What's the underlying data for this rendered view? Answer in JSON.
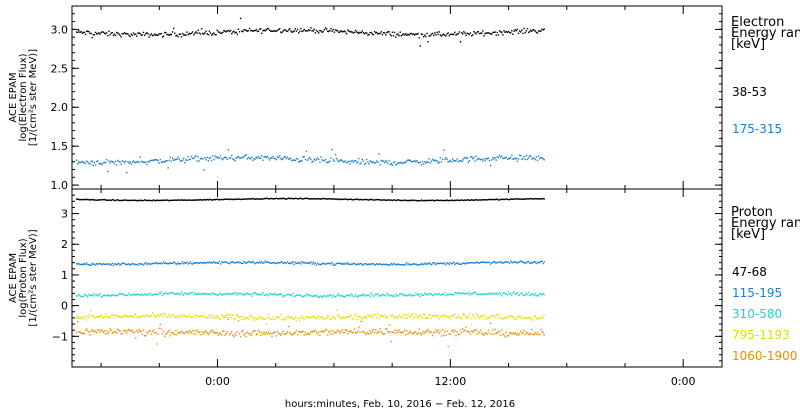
{
  "chart_data": [
    {
      "type": "scatter",
      "name": "electron",
      "ylabel_lines": [
        "ACE EPAM",
        "log(Electron Flux)",
        "[1/(cm²s ster MeV)]"
      ],
      "legend_title_lines": [
        "Electron",
        "Energy range",
        "[keV]"
      ],
      "ylim": [
        0.95,
        3.3
      ],
      "yticks": [
        1.0,
        1.5,
        2.0,
        2.5,
        3.0
      ],
      "ytick_labels": [
        "1.0",
        "1.5",
        "2.0",
        "2.5",
        "3.0"
      ],
      "series": [
        {
          "name": "38-53",
          "color": "#000000",
          "mean": 2.97,
          "noise": 0.045,
          "spikes": 0.03
        },
        {
          "name": "175-315",
          "color": "#1a7fd4",
          "mean": 1.33,
          "noise": 0.055,
          "spikes": 0.05
        }
      ]
    },
    {
      "type": "scatter",
      "name": "proton",
      "ylabel_lines": [
        "ACE EPAM",
        "log(Proton Flux)",
        "[1/(cm²s ster MeV)]"
      ],
      "legend_title_lines": [
        "Proton",
        "Energy range",
        "[keV]"
      ],
      "ylim": [
        -2.0,
        3.8
      ],
      "yticks": [
        -1,
        0,
        1,
        2,
        3
      ],
      "ytick_labels": [
        "−1",
        "0",
        "1",
        "2",
        "3"
      ],
      "series": [
        {
          "name": "47-68",
          "color": "#000000",
          "mean": 3.48,
          "noise": 0.02,
          "spikes": 0.0
        },
        {
          "name": "115-195",
          "color": "#1a7fd4",
          "mean": 1.4,
          "noise": 0.06,
          "spikes": 0.0
        },
        {
          "name": "310-580",
          "color": "#22d3cf",
          "mean": 0.38,
          "noise": 0.08,
          "spikes": 0.0
        },
        {
          "name": "795-1193",
          "color": "#e0e000",
          "mean": -0.35,
          "noise": 0.12,
          "spikes": 0.02
        },
        {
          "name": "1060-1900",
          "color": "#f08c00",
          "mean": -0.85,
          "noise": 0.16,
          "spikes": 0.04
        }
      ]
    }
  ],
  "x_axis": {
    "label": "hours:minutes, Feb. 10, 2016 − Feb. 12, 2016",
    "range_hours": [
      -7.5,
      26
    ],
    "data_end_hours": 16.8,
    "major_ticks": [
      0,
      12,
      24
    ],
    "tick_labels": [
      "0:00",
      "12:00",
      "0:00"
    ],
    "minor_step_hours": 3
  }
}
